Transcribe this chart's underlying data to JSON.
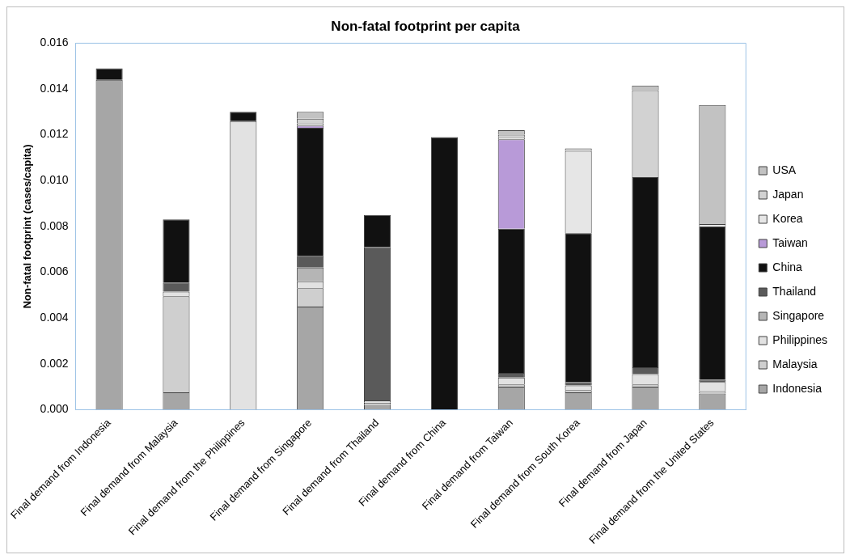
{
  "chart_data": {
    "type": "bar",
    "title": "Non-fatal footprint per capita",
    "ylabel": "Non-fatal footprint (cases/capita)",
    "categories": [
      "Final demand from Indonesia",
      "Final demand from Malaysia",
      "Final demand from the Philippines",
      "Final demand from Singapore",
      "Final demand from Thailand",
      "Final demand from China",
      "Final demand from Taiwan",
      "Final demand from South Korea",
      "Final demand from Japan",
      "Final demand from the United States"
    ],
    "stacked": true,
    "legend": "right",
    "grid": false,
    "ylim": [
      0,
      0.016
    ],
    "yticks": [
      {
        "value": 0,
        "label": "0.000"
      },
      {
        "value": 0.002,
        "label": "0.002"
      },
      {
        "value": 0.004,
        "label": "0.004"
      },
      {
        "value": 0.006,
        "label": "0.006"
      },
      {
        "value": 0.008,
        "label": "0.008"
      },
      {
        "value": 0.01,
        "label": "0.010"
      },
      {
        "value": 0.012,
        "label": "0.012"
      },
      {
        "value": 0.014,
        "label": "0.014"
      },
      {
        "value": 0.016,
        "label": "0.016"
      }
    ],
    "series": [
      {
        "name": "Indonesia",
        "color": "#a6a6a6",
        "values": [
          0.0144,
          0.00075,
          0,
          0.0045,
          0.0002,
          0,
          0.001,
          0.00075,
          0.001,
          0.0007
        ]
      },
      {
        "name": "Malaysia",
        "color": "#cfcfcf",
        "values": [
          0,
          0.0042,
          0,
          0.0008,
          0.0001,
          0,
          0.0001,
          0.0001,
          0.0001,
          0.0001
        ]
      },
      {
        "name": "Philippines",
        "color": "#e2e2e2",
        "values": [
          0,
          0.0002,
          0.0126,
          0.0003,
          0.0001,
          0,
          0.0003,
          0.0002,
          0.00045,
          0.0004
        ]
      },
      {
        "name": "Singapore",
        "color": "#b5b5b5",
        "values": [
          0,
          0,
          0,
          0.0006,
          0,
          0,
          0,
          0,
          0,
          0
        ]
      },
      {
        "name": "Thailand",
        "color": "#5a5a5a",
        "values": [
          0,
          0.0004,
          0,
          0.0005,
          0.0067,
          0,
          0.0002,
          0.00015,
          0.0003,
          0.0001
        ]
      },
      {
        "name": "China",
        "color": "#111111",
        "values": [
          0.0005,
          0.00275,
          0.0004,
          0.0056,
          0.0014,
          0.0119,
          0.0063,
          0.0065,
          0.0083,
          0.0067
        ]
      },
      {
        "name": "Taiwan",
        "color": "#b89ad8",
        "values": [
          0,
          0,
          0,
          0.0001,
          0,
          0,
          0.0039,
          0,
          0,
          0
        ]
      },
      {
        "name": "Korea",
        "color": "#e6e6e6",
        "values": [
          0,
          0,
          0,
          0.0001,
          0,
          0,
          0.0001,
          0.0036,
          0,
          0.0001
        ]
      },
      {
        "name": "Japan",
        "color": "#d2d2d2",
        "values": [
          0,
          0,
          0,
          0.0002,
          0,
          0,
          0.0001,
          0.0001,
          0.0038,
          0
        ]
      },
      {
        "name": "USA",
        "color": "#c2c2c2",
        "values": [
          0,
          0,
          0,
          0.0003,
          0,
          0,
          0.0002,
          0,
          0.0002,
          0.0052
        ]
      }
    ]
  }
}
